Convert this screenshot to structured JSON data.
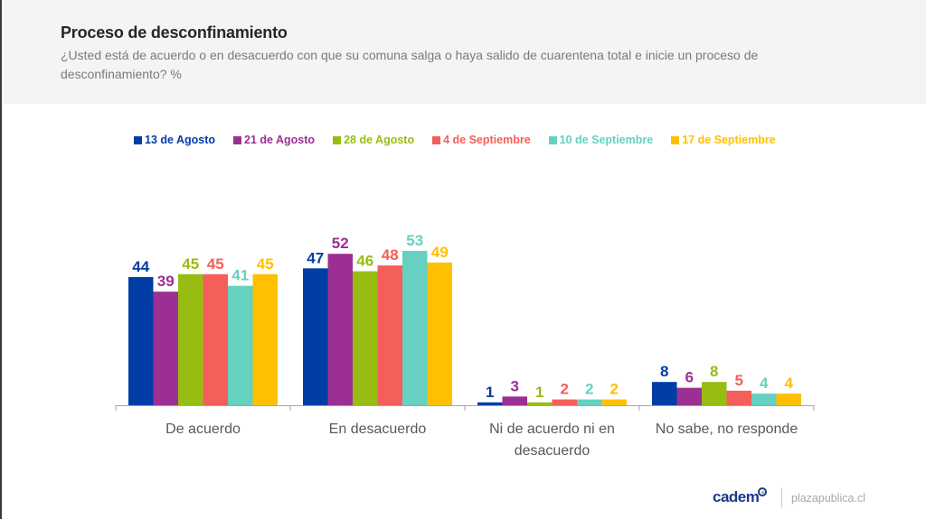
{
  "header": {
    "title": "Proceso de desconfinamiento",
    "subtitle": "¿Usted está de acuerdo o en desacuerdo con que su comuna salga o haya salido de cuarentena total e inicie un proceso de desconfinamiento? %"
  },
  "footer": {
    "brand": "cadem",
    "site": "plazapublica.cl"
  },
  "chart_data": {
    "type": "bar",
    "title": "Proceso de desconfinamiento",
    "subtitle": "¿Usted está de acuerdo o en desacuerdo con que su comuna salga o haya salido de cuarentena total e inicie un proceso de desconfinamiento? %",
    "xlabel": "",
    "ylabel": "",
    "ylim": [
      0,
      55
    ],
    "grid": false,
    "legend_position": "top",
    "categories": [
      "De acuerdo",
      "En desacuerdo",
      "Ni de acuerdo ni en desacuerdo",
      "No sabe, no responde"
    ],
    "category_lines": [
      [
        "De acuerdo"
      ],
      [
        "En desacuerdo"
      ],
      [
        "Ni de acuerdo ni en",
        "desacuerdo"
      ],
      [
        "No sabe, no responde"
      ]
    ],
    "series": [
      {
        "name": "13 de Agosto",
        "color": "#003da5",
        "values": [
          44,
          47,
          1,
          8
        ]
      },
      {
        "name": "21 de Agosto",
        "color": "#9b2f93",
        "values": [
          39,
          52,
          3,
          6
        ]
      },
      {
        "name": "28 de Agosto",
        "color": "#97bd13",
        "values": [
          45,
          46,
          1,
          8
        ]
      },
      {
        "name": "4 de Septiembre",
        "color": "#f45f5a",
        "values": [
          45,
          48,
          2,
          5
        ]
      },
      {
        "name": "10 de Septiembre",
        "color": "#66d0c1",
        "values": [
          41,
          53,
          2,
          4
        ]
      },
      {
        "name": "17 de Septiembre",
        "color": "#ffc000",
        "values": [
          45,
          49,
          2,
          4
        ]
      }
    ]
  }
}
